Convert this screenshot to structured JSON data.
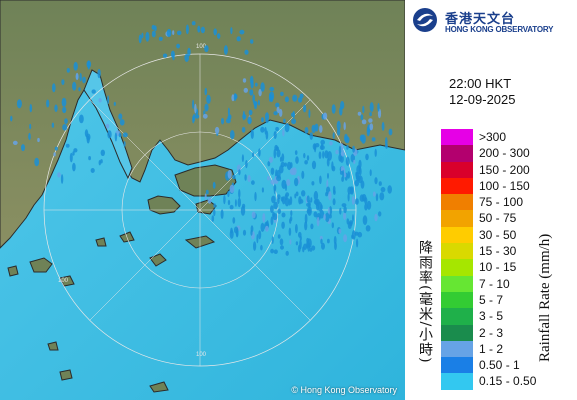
{
  "header": {
    "logo_zh": "香港天文台",
    "logo_en": "HONG KONG OBSERVATORY"
  },
  "timestamp": {
    "time": "22:00 HKT",
    "date": "12-09-2025"
  },
  "legend": {
    "title_en": "Rainfall Rate (mm/h)",
    "title_zh": "降雨率(毫米/小時)",
    "items": [
      {
        "range": ">300",
        "color": "#e600e6"
      },
      {
        "range": "200 - 300",
        "color": "#b3006e"
      },
      {
        "range": "150 - 200",
        "color": "#d9002b"
      },
      {
        "range": "100 - 150",
        "color": "#ff1a00"
      },
      {
        "range": "75 - 100",
        "color": "#f07f00"
      },
      {
        "range": "50 - 75",
        "color": "#f2a300"
      },
      {
        "range": "30 - 50",
        "color": "#ffcc00"
      },
      {
        "range": "15 - 30",
        "color": "#d9d900"
      },
      {
        "range": "10 - 15",
        "color": "#a6e600"
      },
      {
        "range": "7 - 10",
        "color": "#66e633"
      },
      {
        "range": "5 - 7",
        "color": "#33cc33"
      },
      {
        "range": "3 - 5",
        "color": "#1fb04a"
      },
      {
        "range": "2 - 3",
        "color": "#1a8c4d"
      },
      {
        "range": "1 - 2",
        "color": "#66a3e6"
      },
      {
        "range": "0.50 - 1",
        "color": "#1a7fe6"
      },
      {
        "range": "0.15 - 0.50",
        "color": "#33c8f0"
      }
    ]
  },
  "map": {
    "range_ring_labels": [
      "100",
      "100",
      "100"
    ],
    "copyright": "© Hong Kong Observatory",
    "colors": {
      "sea": "#3fc0e6",
      "land": "#7a8a5c",
      "rain": "#1a8fd6"
    }
  }
}
